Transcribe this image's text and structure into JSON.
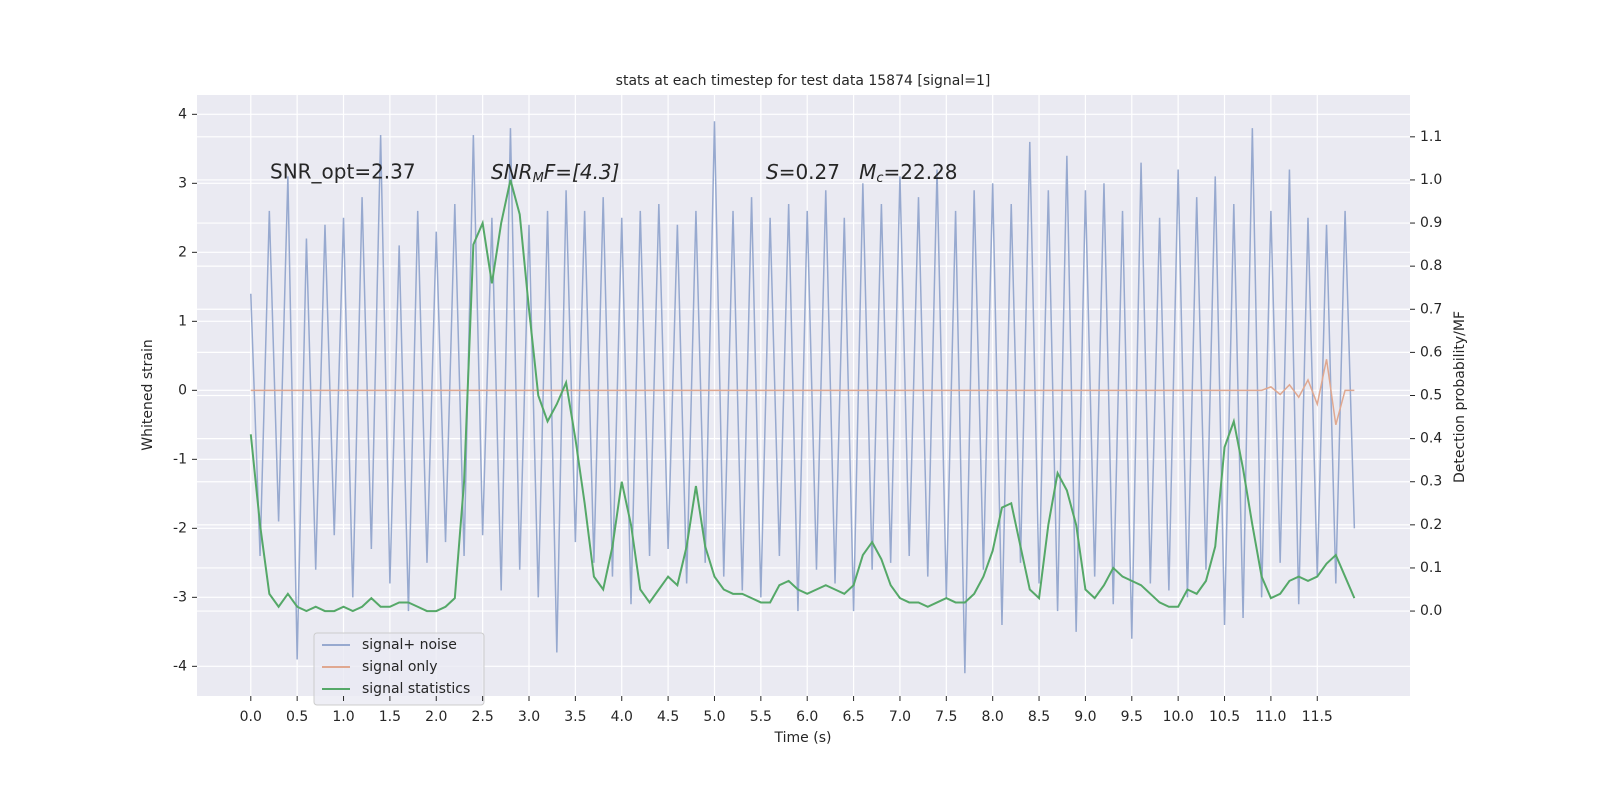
{
  "chart_data": {
    "type": "line",
    "title": "stats at each timestep for test data 15874 [signal=1]",
    "xlabel": "Time (s)",
    "ylabel": "Whitened strain",
    "y2label": "Detection probability/MF",
    "annotations": [
      {
        "text": "SNR_opt=2.37"
      },
      {
        "parts": [
          "SNR",
          "M",
          "F=[4.3]"
        ]
      },
      {
        "parts": [
          "S",
          "=0.27   ",
          "M",
          "c",
          "=22.28"
        ]
      }
    ],
    "x": [
      0,
      0.1,
      0.2,
      0.3,
      0.4,
      0.5,
      0.6,
      0.7,
      0.8,
      0.9,
      1,
      1.1,
      1.2,
      1.3,
      1.4,
      1.5,
      1.6,
      1.7,
      1.8,
      1.9,
      2,
      2.1,
      2.2,
      2.3,
      2.4,
      2.5,
      2.6,
      2.7,
      2.8,
      2.9,
      3,
      3.1,
      3.2,
      3.3,
      3.4,
      3.5,
      3.6,
      3.7,
      3.8,
      3.9,
      4,
      4.1,
      4.2,
      4.3,
      4.4,
      4.5,
      4.6,
      4.7,
      4.8,
      4.9,
      5,
      5.1,
      5.2,
      5.3,
      5.4,
      5.5,
      5.6,
      5.7,
      5.8,
      5.9,
      6,
      6.1,
      6.2,
      6.3,
      6.4,
      6.5,
      6.6,
      6.7,
      6.8,
      6.9,
      7,
      7.1,
      7.2,
      7.3,
      7.4,
      7.5,
      7.6,
      7.7,
      7.8,
      7.9,
      8,
      8.1,
      8.2,
      8.3,
      8.4,
      8.5,
      8.6,
      8.7,
      8.8,
      8.9,
      9,
      9.1,
      9.2,
      9.3,
      9.4,
      9.5,
      9.6,
      9.7,
      9.8,
      9.9,
      10,
      10.1,
      10.2,
      10.3,
      10.4,
      10.5,
      10.6,
      10.7,
      10.8,
      10.9,
      11,
      11.1,
      11.2,
      11.3,
      11.4,
      11.5,
      11.6,
      11.7,
      11.8,
      11.9
    ],
    "series": [
      {
        "name": "signal+ noise",
        "color": "#97a9cf",
        "values": [
          1.4,
          -2.4,
          2.6,
          -1.9,
          3.1,
          -3.9,
          2.2,
          -2.6,
          2.4,
          -2.1,
          2.5,
          -3.0,
          2.8,
          -2.3,
          3.7,
          -2.8,
          2.1,
          -3.2,
          2.6,
          -2.5,
          2.3,
          -2.2,
          2.7,
          -2.4,
          3.7,
          -2.1,
          2.5,
          -2.9,
          3.8,
          -2.6,
          2.4,
          -3.0,
          2.6,
          -3.8,
          2.9,
          -2.2,
          2.6,
          -2.5,
          2.8,
          -2.7,
          2.5,
          -3.1,
          2.6,
          -2.4,
          2.7,
          -2.3,
          2.4,
          -2.8,
          2.6,
          -2.5,
          3.9,
          -2.7,
          2.6,
          -2.9,
          2.8,
          -3.0,
          2.5,
          -2.4,
          2.7,
          -3.2,
          2.6,
          -2.6,
          2.9,
          -2.8,
          2.5,
          -3.2,
          3.0,
          -2.6,
          2.7,
          -2.5,
          3.1,
          -2.4,
          2.8,
          -2.7,
          3.2,
          -3.0,
          2.6,
          -4.1,
          2.9,
          -2.6,
          3.0,
          -3.4,
          2.7,
          -2.5,
          3.6,
          -2.8,
          2.9,
          -3.2,
          3.4,
          -3.5,
          2.9,
          -2.7,
          3.0,
          -3.1,
          2.6,
          -3.6,
          3.3,
          -2.8,
          2.5,
          -2.9,
          3.2,
          -3.0,
          2.8,
          -2.6,
          3.1,
          -3.4,
          2.7,
          -3.3,
          3.8,
          -3.0,
          2.6,
          -2.5,
          3.2,
          -3.1,
          2.5,
          -2.7,
          2.4,
          -2.8,
          2.6,
          -2.0
        ]
      },
      {
        "name": "signal only",
        "color": "#e0a890",
        "values": [
          0,
          0,
          0,
          0,
          0,
          0,
          0,
          0,
          0,
          0,
          0,
          0,
          0,
          0,
          0,
          0,
          0,
          0,
          0,
          0,
          0,
          0,
          0,
          0,
          0,
          0,
          0,
          0,
          0,
          0,
          0,
          0,
          0,
          0,
          0,
          0,
          0,
          0,
          0,
          0,
          0,
          0,
          0,
          0,
          0,
          0,
          0,
          0,
          0,
          0,
          0,
          0,
          0,
          0,
          0,
          0,
          0,
          0,
          0,
          0,
          0,
          0,
          0,
          0,
          0,
          0,
          0,
          0,
          0,
          0,
          0,
          0,
          0,
          0,
          0,
          0,
          0,
          0,
          0,
          0,
          0,
          0,
          0,
          0,
          0,
          0,
          0,
          0,
          0,
          0,
          0,
          0,
          0,
          0,
          0,
          0,
          0,
          0,
          0,
          0,
          0,
          0,
          0,
          0,
          0,
          0,
          0,
          0,
          0,
          0,
          0.05,
          -0.06,
          0.08,
          -0.1,
          0.15,
          -0.2,
          0.45,
          -0.5,
          0,
          0
        ]
      },
      {
        "name": "signal statistics",
        "color": "#55a868",
        "axis": "y2",
        "values": [
          0.41,
          0.2,
          0.04,
          0.01,
          0.04,
          0.01,
          0,
          0.01,
          0,
          0,
          0.01,
          0,
          0.01,
          0.03,
          0.01,
          0.01,
          0.02,
          0.02,
          0.01,
          0,
          0,
          0.01,
          0.03,
          0.3,
          0.85,
          0.9,
          0.76,
          0.9,
          1.0,
          0.92,
          0.7,
          0.5,
          0.44,
          0.48,
          0.53,
          0.4,
          0.25,
          0.08,
          0.05,
          0.15,
          0.3,
          0.2,
          0.05,
          0.02,
          0.05,
          0.08,
          0.06,
          0.15,
          0.29,
          0.15,
          0.08,
          0.05,
          0.04,
          0.04,
          0.03,
          0.02,
          0.02,
          0.06,
          0.07,
          0.05,
          0.04,
          0.05,
          0.06,
          0.05,
          0.04,
          0.06,
          0.13,
          0.16,
          0.12,
          0.06,
          0.03,
          0.02,
          0.02,
          0.01,
          0.02,
          0.03,
          0.02,
          0.02,
          0.04,
          0.08,
          0.14,
          0.24,
          0.25,
          0.15,
          0.05,
          0.03,
          0.2,
          0.32,
          0.28,
          0.2,
          0.05,
          0.03,
          0.06,
          0.1,
          0.08,
          0.07,
          0.06,
          0.04,
          0.02,
          0.01,
          0.01,
          0.05,
          0.04,
          0.07,
          0.15,
          0.38,
          0.44,
          0.33,
          0.2,
          0.08,
          0.03,
          0.04,
          0.07,
          0.08,
          0.07,
          0.08,
          0.11,
          0.13,
          0.08,
          0.03
        ]
      }
    ],
    "xlim": [
      -0.58,
      12.5
    ],
    "xticks": [
      {
        "value": 0,
        "label": "0.0"
      },
      0.5,
      {
        "value": 1,
        "label": "1.0"
      },
      1.5,
      {
        "value": 2,
        "label": "2.0"
      },
      2.5,
      {
        "value": 3,
        "label": "3.0"
      },
      3.5,
      {
        "value": 4,
        "label": "4.0"
      },
      4.5,
      {
        "value": 5,
        "label": "5.0"
      },
      5.5,
      {
        "value": 6,
        "label": "6.0"
      },
      6.5,
      {
        "value": 7,
        "label": "7.0"
      },
      7.5,
      {
        "value": 8,
        "label": "8.0"
      },
      8.5,
      {
        "value": 9,
        "label": "9.0"
      },
      9.5,
      {
        "value": 10,
        "label": "10.0"
      },
      10.5,
      {
        "value": 11,
        "label": "11.0"
      },
      11.5
    ],
    "ylim": [
      -4.43,
      4.28
    ],
    "yticks": [
      -4,
      -3,
      -2,
      -1,
      0,
      1,
      2,
      3,
      4
    ],
    "y2lim": [
      -0.197,
      1.197
    ],
    "y2ticks": [
      {
        "value": 0,
        "label": "0.0"
      },
      0.1,
      0.2,
      0.3,
      0.4,
      0.5,
      0.6,
      0.7,
      0.8,
      0.9,
      {
        "value": 1,
        "label": "1.0"
      },
      1.1
    ],
    "grid": true,
    "legend": "lower left"
  }
}
